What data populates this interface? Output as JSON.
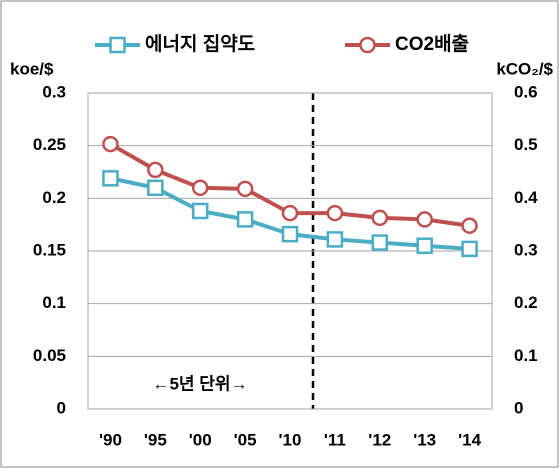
{
  "chart_data": {
    "type": "line",
    "categories": [
      "'90",
      "'95",
      "'00",
      "'05",
      "'10",
      "'11",
      "'12",
      "'13",
      "'14"
    ],
    "series": [
      {
        "name": "에너지 집약도",
        "color": "#4aacc5",
        "values": [
          0.219,
          0.21,
          0.188,
          0.18,
          0.166,
          0.161,
          0.158,
          0.155,
          0.152
        ]
      },
      {
        "name": "CO2배출",
        "color": "#c0504d",
        "axis": "y2",
        "values": [
          0.503,
          0.454,
          0.42,
          0.418,
          0.372,
          0.372,
          0.363,
          0.36,
          0.348
        ]
      }
    ],
    "y_label": "koe/$",
    "y2_label": "kCO₂/$",
    "annotation": "←5년 단위→",
    "ylim": [
      0,
      0.3
    ],
    "yticks": [
      0,
      0.05,
      0.1,
      0.15,
      0.2,
      0.25,
      0.3
    ],
    "y2lim": [
      0,
      0.6
    ],
    "y2ticks": [
      0,
      0.1,
      0.2,
      0.3,
      0.4,
      0.5,
      0.6
    ],
    "grid": true
  }
}
